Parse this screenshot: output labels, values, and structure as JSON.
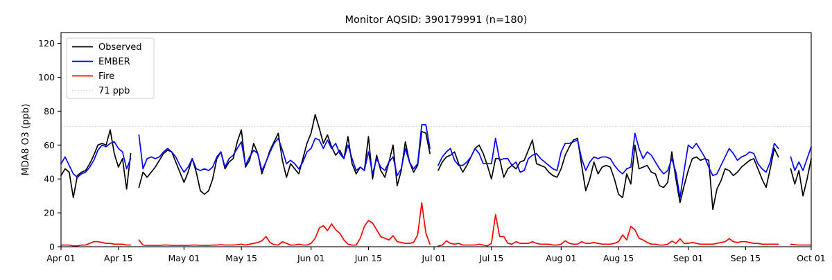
{
  "figure": {
    "background": "#ffffff"
  },
  "chart_data": {
    "type": "line",
    "title": "Monitor AQSID: 390179991 (n=180)",
    "xlabel": "",
    "ylabel": "MDA8 O3 (ppb)",
    "ylim": [
      0,
      126.4
    ],
    "yticks": [
      0,
      20,
      40,
      60,
      80,
      100,
      120
    ],
    "grid": false,
    "legend_position": "upper left",
    "x_unit": "day index from Apr 01",
    "n_days": 184,
    "xticks": [
      {
        "day": 0,
        "label": "Apr 01"
      },
      {
        "day": 14,
        "label": "Apr 15"
      },
      {
        "day": 30,
        "label": "May 01"
      },
      {
        "day": 44,
        "label": "May 15"
      },
      {
        "day": 61,
        "label": "Jun 01"
      },
      {
        "day": 75,
        "label": "Jun 15"
      },
      {
        "day": 91,
        "label": "Jul 01"
      },
      {
        "day": 105,
        "label": "Jul 15"
      },
      {
        "day": 122,
        "label": "Aug 01"
      },
      {
        "day": 136,
        "label": "Aug 15"
      },
      {
        "day": 153,
        "label": "Sep 01"
      },
      {
        "day": 167,
        "label": "Sep 15"
      },
      {
        "day": 183,
        "label": "Oct 01"
      }
    ],
    "threshold": {
      "value": 71,
      "label": "71 ppb",
      "color": "#d3d3d3",
      "style": "dotted"
    },
    "series": [
      {
        "name": "Observed",
        "color": "#000000",
        "values": [
          42,
          46,
          44,
          29,
          42,
          44,
          45,
          49,
          54,
          60,
          61,
          60,
          69,
          55,
          47,
          52,
          34,
          55,
          null,
          35,
          44,
          41,
          44,
          47,
          51,
          55,
          57,
          56,
          50,
          44,
          38,
          44,
          52,
          44,
          33,
          31,
          33,
          40,
          52,
          56,
          46,
          50,
          52,
          62,
          69,
          47,
          51,
          61,
          55,
          43,
          50,
          57,
          62,
          67,
          51,
          41,
          49,
          46,
          43,
          52,
          61,
          67,
          78,
          70,
          61,
          66,
          59,
          54,
          57,
          52,
          65,
          49,
          43,
          47,
          45,
          65,
          40,
          54,
          45,
          41,
          50,
          60,
          36,
          45,
          62,
          50,
          44,
          48,
          68,
          67,
          55,
          null,
          45,
          50,
          53,
          54,
          56,
          49,
          44,
          48,
          53,
          58,
          60,
          55,
          48,
          40,
          52,
          52,
          41,
          46,
          48,
          46,
          50,
          51,
          57,
          63,
          49,
          48,
          47,
          44,
          42,
          41,
          46,
          54,
          59,
          63,
          64,
          48,
          33,
          40,
          50,
          43,
          47,
          48,
          47,
          40,
          31,
          29,
          43,
          37,
          60,
          46,
          47,
          48,
          44,
          43,
          36,
          35,
          38,
          56,
          40,
          26,
          36,
          45,
          52,
          53,
          51,
          52,
          51,
          22,
          34,
          39,
          46,
          45,
          42,
          44,
          47,
          49,
          51,
          52,
          46,
          40,
          35,
          46,
          58,
          53,
          null,
          null,
          46,
          37,
          45,
          30,
          40,
          52
        ]
      },
      {
        "name": "EMBER",
        "color": "#0000ff",
        "values": [
          49,
          53,
          48,
          43,
          41,
          43,
          44,
          47,
          51,
          57,
          60,
          59,
          61,
          62,
          58,
          56,
          46,
          52,
          null,
          66,
          46,
          52,
          53,
          52,
          53,
          56,
          58,
          56,
          53,
          48,
          44,
          47,
          52,
          46,
          45,
          46,
          45,
          47,
          53,
          56,
          47,
          52,
          54,
          58,
          62,
          48,
          53,
          57,
          55,
          45,
          50,
          56,
          61,
          64,
          57,
          49,
          51,
          49,
          46,
          50,
          56,
          58,
          64,
          63,
          58,
          63,
          58,
          61,
          55,
          52,
          60,
          52,
          45,
          47,
          45,
          56,
          43,
          52,
          47,
          45,
          50,
          53,
          42,
          46,
          58,
          50,
          46,
          49,
          72,
          72,
          58,
          null,
          48,
          53,
          56,
          58,
          51,
          48,
          48,
          50,
          53,
          58,
          55,
          49,
          49,
          49,
          64,
          51,
          52,
          52,
          48,
          50,
          44,
          45,
          52,
          54,
          55,
          52,
          50,
          48,
          46,
          45,
          56,
          61,
          61,
          62,
          63,
          52,
          45,
          50,
          53,
          52,
          53,
          53,
          52,
          48,
          45,
          43,
          46,
          47,
          67,
          58,
          52,
          56,
          54,
          50,
          46,
          43,
          45,
          52,
          44,
          29,
          45,
          60,
          58,
          61,
          57,
          53,
          47,
          42,
          43,
          48,
          53,
          58,
          55,
          51,
          53,
          54,
          56,
          55,
          49,
          46,
          44,
          50,
          61,
          58,
          null,
          null,
          53,
          45,
          50,
          45,
          52,
          59
        ]
      },
      {
        "name": "Fire",
        "color": "#ff0000",
        "values": [
          1,
          1,
          1,
          0.5,
          0.5,
          1,
          1,
          2,
          3,
          3,
          2.5,
          2,
          2,
          1.5,
          1.5,
          1.5,
          1,
          1,
          null,
          4,
          1,
          0.8,
          0.8,
          0.8,
          0.8,
          1,
          1,
          0.8,
          0.8,
          0.8,
          0.8,
          0.8,
          1,
          1,
          0.8,
          0.8,
          0.8,
          1,
          1,
          1.2,
          1,
          1,
          1,
          1.2,
          1.5,
          1,
          1.5,
          2,
          2.5,
          3.5,
          6,
          2.5,
          1.2,
          1,
          3,
          2,
          1,
          1,
          1.5,
          1,
          1,
          2,
          5,
          11,
          12.5,
          9.5,
          13.5,
          10,
          8,
          4,
          1.5,
          1,
          1,
          5,
          12,
          15.5,
          14,
          10,
          6,
          5,
          4,
          6.5,
          3,
          2.5,
          2,
          2,
          2.5,
          7,
          26,
          8,
          1.5,
          null,
          0.5,
          1,
          3.5,
          2,
          1.5,
          2,
          1,
          1,
          1,
          1,
          1.5,
          1,
          0.5,
          2,
          19,
          6,
          6,
          2,
          1.5,
          3,
          2,
          2,
          2,
          3,
          2,
          1.5,
          1.5,
          1.5,
          1,
          1,
          1.5,
          3.5,
          2,
          1.5,
          1.5,
          3,
          2,
          2,
          2.5,
          2,
          1.5,
          1.5,
          1.5,
          2,
          3,
          7,
          4,
          12,
          10,
          5,
          4,
          2.5,
          1.5,
          1.5,
          1,
          1,
          1.5,
          3.3,
          2,
          4.7,
          2,
          2,
          2.5,
          2,
          1.5,
          1.5,
          1.5,
          1.5,
          2,
          2.5,
          3,
          4.8,
          3,
          2.5,
          3,
          3,
          2.5,
          2,
          2,
          1.5,
          1.5,
          1.5,
          1.5,
          1.5,
          null,
          null,
          1.5,
          1.2,
          1,
          1,
          1,
          1
        ]
      }
    ]
  },
  "legend": {
    "items": [
      {
        "label": "Observed",
        "color": "#000000",
        "dash": "solid"
      },
      {
        "label": "EMBER",
        "color": "#0000ff",
        "dash": "solid"
      },
      {
        "label": "Fire",
        "color": "#ff0000",
        "dash": "solid"
      },
      {
        "label": "71 ppb",
        "color": "#d3d3d3",
        "dash": "dotted"
      }
    ]
  }
}
